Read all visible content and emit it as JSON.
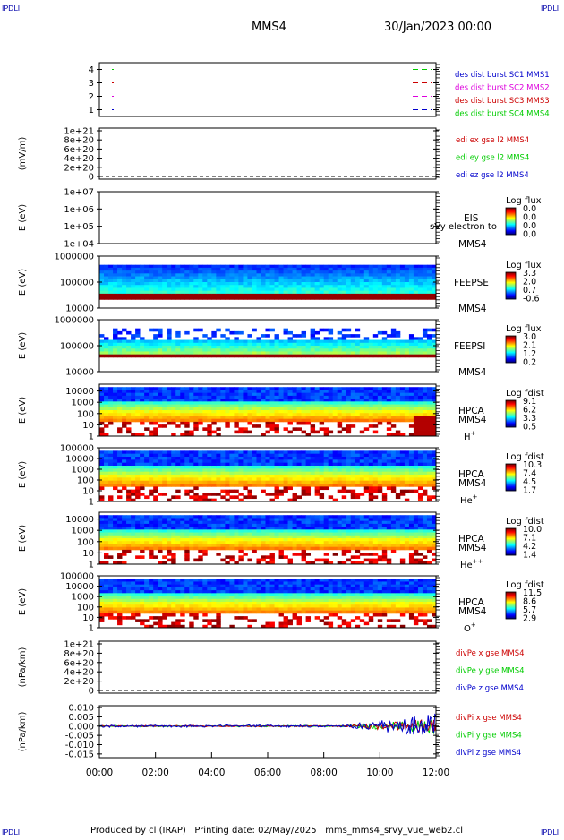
{
  "header": {
    "corner_label": "IPDLI",
    "spacecraft": "MMS4",
    "date": "30/Jan/2023 00:00"
  },
  "footer": {
    "text": "Produced by cl (IRAP)   Printing date: 02/May/2025   mms_mms4_srvy_vue_web2.cl"
  },
  "x_axis": {
    "ticks": [
      "00:00",
      "02:00",
      "04:00",
      "06:00",
      "08:00",
      "10:00",
      "12:00"
    ],
    "range": [
      "00:00",
      "12:00"
    ]
  },
  "colors": {
    "red": "#cc0000",
    "green": "#00cc00",
    "blue": "#0000cc",
    "magenta": "#dd00dd",
    "axis": "#000000"
  },
  "chart_data": [
    {
      "id": "burst",
      "type": "scatter",
      "ylabel": "",
      "yticks": [
        "4",
        "3",
        "2",
        "1"
      ],
      "ylim": [
        0.5,
        4.5
      ],
      "legend": [
        {
          "text": "des dist burst SC1 MMS1",
          "color": "#0000cc"
        },
        {
          "text": "des dist burst SC2 MMS2",
          "color": "#dd00dd"
        },
        {
          "text": "des dist burst SC3 MMS3",
          "color": "#cc0000"
        },
        {
          "text": "des dist burst SC4 MMS4",
          "color": "#00cc00"
        }
      ]
    },
    {
      "id": "edi",
      "type": "line",
      "ylabel": "(mV/m)",
      "yticks": [
        "1e+21",
        "8e+20",
        "6e+20",
        "4e+20",
        "2e+20",
        "0"
      ],
      "ylim": [
        0,
        1e+21
      ],
      "legend": [
        {
          "text": "edi ex gse l2 MMS4",
          "color": "#cc0000"
        },
        {
          "text": "edi ey gse l2 MMS4",
          "color": "#00cc00"
        },
        {
          "text": "edi ez gse l2 MMS4",
          "color": "#0000cc"
        }
      ]
    },
    {
      "id": "eis",
      "type": "heatmap",
      "ylabel": "E (eV)",
      "yticks": [
        "1e+07",
        "1e+06",
        "1e+05",
        "1e+04"
      ],
      "ylim": [
        10000.0,
        10000000.0
      ],
      "log_y": true,
      "instrument": [
        "EIS",
        "MMS4"
      ],
      "overlay": "sVy electron to",
      "cbar_title": "Log flux",
      "cbar_ticks": [
        "0.0",
        "0.0",
        "0.0",
        "0.0"
      ]
    },
    {
      "id": "feepse",
      "type": "heatmap",
      "ylabel": "E (eV)",
      "yticks": [
        "1000000",
        "100000",
        "10000"
      ],
      "ylim": [
        10000.0,
        1000000.0
      ],
      "log_y": true,
      "instrument": [
        "FEEPSE",
        "MMS4"
      ],
      "cbar_title": "Log flux",
      "cbar_ticks": [
        "3.3",
        "2.0",
        "0.7",
        "-0.6"
      ]
    },
    {
      "id": "feepsi",
      "type": "heatmap",
      "ylabel": "E (eV)",
      "yticks": [
        "1000000",
        "100000",
        "10000"
      ],
      "ylim": [
        10000.0,
        1000000.0
      ],
      "log_y": true,
      "instrument": [
        "FEEPSI",
        "MMS4"
      ],
      "cbar_title": "Log flux",
      "cbar_ticks": [
        "3.0",
        "2.1",
        "1.2",
        "0.2"
      ]
    },
    {
      "id": "hpca_h",
      "type": "heatmap",
      "ylabel": "E (eV)",
      "yticks": [
        "10000",
        "1000",
        "100",
        "10",
        "1"
      ],
      "ylim": [
        1,
        40000
      ],
      "log_y": true,
      "instrument": [
        "HPCA",
        "MMS4"
      ],
      "species": "H",
      "species_sup": "+",
      "cbar_title": "Log fdist",
      "cbar_ticks": [
        "9.1",
        "6.2",
        "3.3",
        "0.5"
      ]
    },
    {
      "id": "hpca_he",
      "type": "heatmap",
      "ylabel": "E (eV)",
      "yticks": [
        "100000",
        "10000",
        "1000",
        "100",
        "10",
        "1"
      ],
      "ylim": [
        1,
        100000
      ],
      "log_y": true,
      "instrument": [
        "HPCA",
        "MMS4"
      ],
      "species": "He",
      "species_sup": "+",
      "cbar_title": "Log fdist",
      "cbar_ticks": [
        "10.3",
        "7.4",
        "4.5",
        "1.7"
      ]
    },
    {
      "id": "hpca_hepp",
      "type": "heatmap",
      "ylabel": "E (eV)",
      "yticks": [
        "10000",
        "1000",
        "100",
        "10",
        "1"
      ],
      "ylim": [
        1,
        40000
      ],
      "log_y": true,
      "instrument": [
        "HPCA",
        "MMS4"
      ],
      "species": "He",
      "species_sup": "++",
      "cbar_title": "Log fdist",
      "cbar_ticks": [
        "10.0",
        "7.1",
        "4.2",
        "1.4"
      ]
    },
    {
      "id": "hpca_o",
      "type": "heatmap",
      "ylabel": "E (eV)",
      "yticks": [
        "100000",
        "10000",
        "1000",
        "100",
        "10",
        "1"
      ],
      "ylim": [
        1,
        100000
      ],
      "log_y": true,
      "instrument": [
        "HPCA",
        "MMS4"
      ],
      "species": "O",
      "species_sup": "+",
      "cbar_title": "Log fdist",
      "cbar_ticks": [
        "11.5",
        "8.6",
        "5.7",
        "2.9"
      ]
    },
    {
      "id": "divpe",
      "type": "line",
      "ylabel": "(nPa/km)",
      "yticks": [
        "1e+21",
        "8e+20",
        "6e+20",
        "4e+20",
        "2e+20",
        "0"
      ],
      "ylim": [
        0,
        1e+21
      ],
      "legend": [
        {
          "text": "divPe x gse MMS4",
          "color": "#cc0000"
        },
        {
          "text": "divPe y gse MMS4",
          "color": "#00cc00"
        },
        {
          "text": "divPe z gse MMS4",
          "color": "#0000cc"
        }
      ]
    },
    {
      "id": "divpi",
      "type": "line",
      "ylabel": "(nPa/km)",
      "yticks": [
        "0.010",
        "0.005",
        "0.000",
        "-0.005",
        "-0.010",
        "-0.015"
      ],
      "ylim": [
        -0.017,
        0.011
      ],
      "legend": [
        {
          "text": "divPi x gse MMS4",
          "color": "#cc0000"
        },
        {
          "text": "divPi y gse MMS4",
          "color": "#00cc00"
        },
        {
          "text": "divPi z gse MMS4",
          "color": "#0000cc"
        }
      ]
    }
  ]
}
